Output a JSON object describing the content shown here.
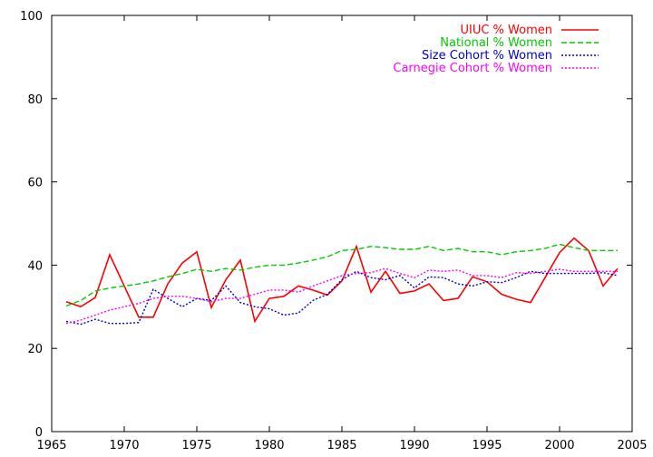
{
  "chart_data": {
    "type": "line",
    "title": "",
    "xlabel": "",
    "ylabel": "",
    "xlim": [
      1965,
      2005
    ],
    "ylim": [
      0,
      100
    ],
    "xticks": [
      1965,
      1970,
      1975,
      1980,
      1985,
      1990,
      1995,
      2000,
      2005
    ],
    "yticks": [
      0,
      20,
      40,
      60,
      80,
      100
    ],
    "grid": false,
    "legend_position": "top-right",
    "x": [
      1966,
      1967,
      1968,
      1969,
      1970,
      1971,
      1972,
      1973,
      1974,
      1975,
      1976,
      1977,
      1978,
      1979,
      1980,
      1981,
      1982,
      1983,
      1984,
      1985,
      1986,
      1987,
      1988,
      1989,
      1990,
      1991,
      1992,
      1993,
      1994,
      1995,
      1996,
      1997,
      1998,
      1999,
      2000,
      2001,
      2002,
      2003,
      2004
    ],
    "series": [
      {
        "name": "UIUC % Women",
        "color": "#ff0000",
        "dash": "solid",
        "values": [
          31.2,
          30.0,
          32.2,
          42.5,
          35.0,
          27.5,
          27.5,
          35.5,
          40.5,
          43.2,
          29.8,
          36.5,
          41.2,
          26.5,
          32.0,
          32.5,
          35.0,
          34.0,
          32.8,
          36.2,
          44.5,
          33.5,
          38.5,
          33.2,
          33.8,
          35.5,
          31.5,
          32.0,
          37.2,
          36.0,
          33.0,
          31.8,
          31.0,
          37.0,
          43.0,
          46.5,
          43.5,
          35.0,
          39.2
        ]
      },
      {
        "name": "National % Women",
        "color": "#00cc00",
        "dash": "dashed",
        "values": [
          30.2,
          31.5,
          33.8,
          34.5,
          35.0,
          35.5,
          36.2,
          37.2,
          38.0,
          39.0,
          38.5,
          39.2,
          38.8,
          39.5,
          40.0,
          40.0,
          40.5,
          41.2,
          42.0,
          43.5,
          43.8,
          44.5,
          44.2,
          43.8,
          43.8,
          44.5,
          43.5,
          44.0,
          43.2,
          43.2,
          42.5,
          43.2,
          43.5,
          44.0,
          45.0,
          44.2,
          43.5,
          43.5,
          43.5
        ]
      },
      {
        "name": "Size Cohort % Women",
        "color": "#0000cc",
        "dash": "dotted",
        "values": [
          26.5,
          25.8,
          27.0,
          26.0,
          26.0,
          26.2,
          34.2,
          32.0,
          30.0,
          32.0,
          31.5,
          35.0,
          31.0,
          30.0,
          29.5,
          28.0,
          28.5,
          31.5,
          33.0,
          36.5,
          38.5,
          37.0,
          36.5,
          37.5,
          34.5,
          37.2,
          37.0,
          35.5,
          35.0,
          36.0,
          35.8,
          37.0,
          38.5,
          38.0,
          38.0,
          38.0,
          38.0,
          38.2,
          37.5
        ]
      },
      {
        "name": "Carnegie Cohort % Women",
        "color": "#ff00ff",
        "dash": "dotted",
        "values": [
          26.0,
          26.8,
          28.0,
          29.2,
          30.0,
          30.8,
          32.0,
          32.5,
          32.5,
          32.0,
          31.2,
          32.0,
          32.0,
          33.0,
          34.0,
          34.0,
          33.5,
          35.0,
          36.2,
          37.5,
          38.0,
          38.2,
          39.2,
          38.0,
          37.0,
          38.8,
          38.5,
          38.8,
          37.5,
          37.5,
          37.0,
          38.2,
          38.0,
          38.5,
          39.0,
          38.5,
          38.5,
          38.5,
          38.5
        ]
      }
    ]
  }
}
